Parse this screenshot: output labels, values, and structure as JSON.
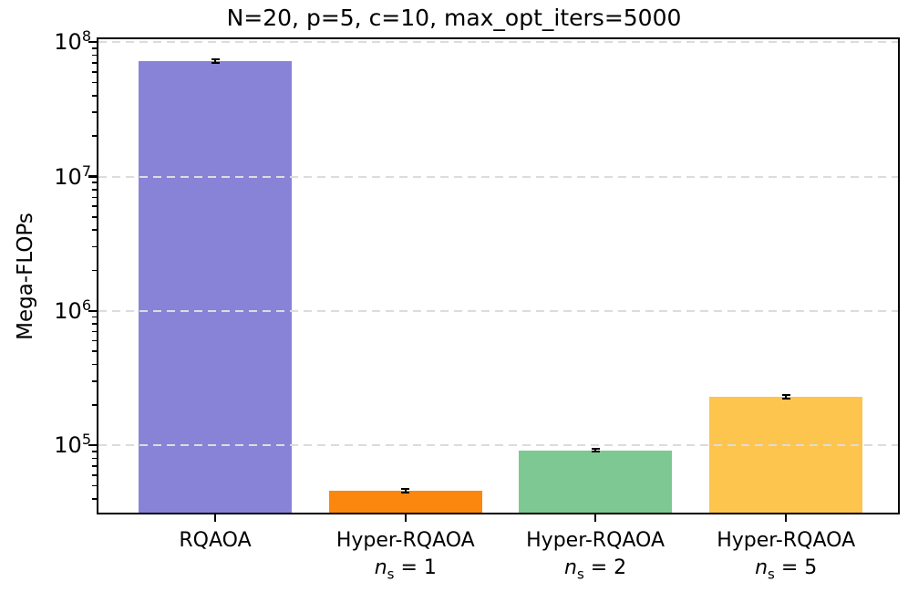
{
  "figure": {
    "background": "#ffffff",
    "text_color": "#000000",
    "spine_color": "#000000"
  },
  "chart_data": {
    "type": "bar",
    "title": "N=20, p=5, c=10, max_opt_iters=5000",
    "xlabel": "",
    "ylabel": "Mega-FLOPs",
    "yscale": "log",
    "ylim": [
      31600,
      105000000
    ],
    "grid": {
      "axis": "y",
      "which": "major",
      "linestyle": "dashed",
      "color": "#dcdcdc",
      "drawn_over_bars": true
    },
    "yticks": [
      {
        "base": "10",
        "exp": "8",
        "value": 100000000
      },
      {
        "base": "10",
        "exp": "7",
        "value": 10000000
      },
      {
        "base": "10",
        "exp": "6",
        "value": 1000000
      },
      {
        "base": "10",
        "exp": "5",
        "value": 100000
      }
    ],
    "categories": [
      {
        "id": "rqaoa",
        "line1": "RQAOA",
        "line2": null
      },
      {
        "id": "hyper-rqaoa-ns-1",
        "line1": "Hyper-RQAOA",
        "line2": {
          "var": "n",
          "sub": "s",
          "rest": " = 1"
        }
      },
      {
        "id": "hyper-rqaoa-ns-2",
        "line1": "Hyper-RQAOA",
        "line2": {
          "var": "n",
          "sub": "s",
          "rest": " = 2"
        }
      },
      {
        "id": "hyper-rqaoa-ns-5",
        "line1": "Hyper-RQAOA",
        "line2": {
          "var": "n",
          "sub": "s",
          "rest": " = 5"
        }
      }
    ],
    "values": [
      72000000,
      46000,
      92000,
      230000
    ],
    "errors": [
      2300000,
      1300,
      2200,
      6000
    ],
    "bar_colors": [
      "#8983d8",
      "#fc870f",
      "#7dc893",
      "#fdc44e"
    ],
    "error_bar_color": "#000000"
  }
}
